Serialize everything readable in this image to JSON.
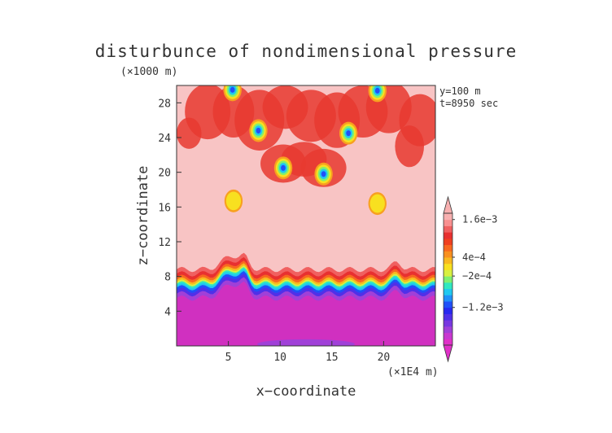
{
  "chart_data": {
    "type": "heatmap",
    "title": "disturbunce of nondimensional pressure",
    "ylabel_unit": "(×1000 m)",
    "xlabel_unit": "(×1E4 m)",
    "xlabel": "x−coordinate",
    "ylabel": "z−coordinate",
    "annotations": [
      "y=100 m",
      "t=8950 sec"
    ],
    "x_ticks": [
      5,
      10,
      15,
      20
    ],
    "y_ticks": [
      4,
      8,
      12,
      16,
      20,
      24,
      28
    ],
    "xlim": [
      0,
      25
    ],
    "ylim": [
      0,
      30
    ],
    "colorbar": {
      "tick_labels": [
        "1.6e−3",
        "4e−4",
        "−2e−4",
        "−1.2e−3"
      ],
      "tick_values": [
        0.0016,
        0.0004,
        -0.0002,
        -0.0012
      ],
      "levels": [
        -0.0024,
        -0.0022,
        -0.002,
        -0.0018,
        -0.0016,
        -0.0014,
        -0.0012,
        -0.001,
        -0.0008,
        -0.0006,
        -0.0004,
        -0.0002,
        0,
        0.0002,
        0.0004,
        0.0006,
        0.0008,
        0.001,
        0.0012,
        0.0014,
        0.0016,
        0.0018
      ],
      "colors": [
        "#e030c8",
        "#c838d0",
        "#a040d8",
        "#7838e0",
        "#5030e8",
        "#2828f0",
        "#2050f8",
        "#2090f8",
        "#20c8f0",
        "#30e8c0",
        "#80f070",
        "#d8f040",
        "#f8e020",
        "#f8b820",
        "#f89020",
        "#f86820",
        "#f04020",
        "#e83030",
        "#f06060",
        "#f89090",
        "#f8b0b0"
      ]
    },
    "regions": {
      "background_color": "#f8c4c4",
      "lower_layer": {
        "top_z": 8.8,
        "color": "#d030c0"
      },
      "highs": [
        {
          "x": 5.4,
          "z": 29.5
        },
        {
          "x": 7.9,
          "z": 24.8
        },
        {
          "x": 10.3,
          "z": 20.5
        },
        {
          "x": 14.2,
          "z": 19.8
        },
        {
          "x": 16.6,
          "z": 24.5
        },
        {
          "x": 19.4,
          "z": 29.4
        },
        {
          "x": 5.5,
          "z": 16.7
        },
        {
          "x": 19.4,
          "z": 16.4
        }
      ]
    }
  }
}
